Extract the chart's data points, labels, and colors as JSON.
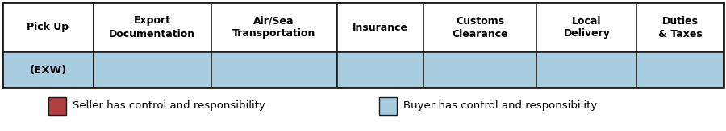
{
  "columns": [
    "Pick Up",
    "Export\nDocumentation",
    "Air/Sea\nTransportation",
    "Insurance",
    "Customs\nClearance",
    "Local\nDelivery",
    "Duties\n& Taxes"
  ],
  "col_widths_rel": [
    1.05,
    1.35,
    1.45,
    1.0,
    1.3,
    1.15,
    1.0
  ],
  "seller_color": "#b34040",
  "buyer_color": "#a8cce0",
  "row_label": "(EXW)",
  "seller_cols": [],
  "buyer_cols": [
    0,
    1,
    2,
    3,
    4,
    5,
    6
  ],
  "header_fontsize": 9.0,
  "row_label_fontsize": 9.5,
  "legend_fontsize": 9.5,
  "background_color": "#ffffff",
  "border_color": "#1a1a1a",
  "legend_seller_label": "Seller has control and responsibility",
  "legend_buyer_label": "Buyer has control and responsibility"
}
